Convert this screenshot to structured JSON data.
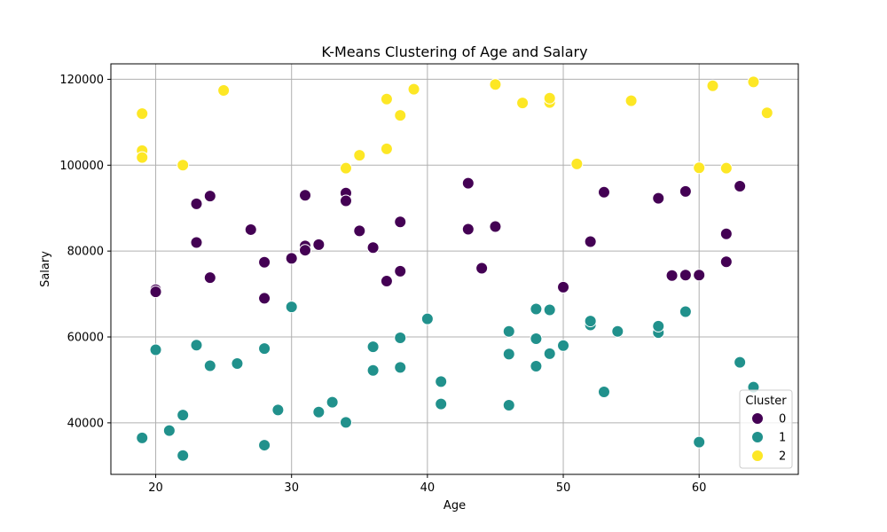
{
  "chart_data": {
    "type": "scatter",
    "title": "K-Means Clustering of Age and Salary",
    "xlabel": "Age",
    "ylabel": "Salary",
    "xlim": [
      16.7,
      67.3
    ],
    "ylim": [
      28000,
      123600
    ],
    "xticks": [
      20,
      30,
      40,
      50,
      60
    ],
    "yticks": [
      40000,
      60000,
      80000,
      100000,
      120000
    ],
    "grid": true,
    "legend": {
      "title": "Cluster",
      "placement": "bottom-right"
    },
    "series": [
      {
        "name": "0",
        "color": "#440154",
        "points": [
          [
            20,
            71000
          ],
          [
            20,
            70500
          ],
          [
            23,
            91000
          ],
          [
            23,
            82000
          ],
          [
            24,
            92800
          ],
          [
            24,
            73800
          ],
          [
            27,
            85000
          ],
          [
            28,
            77400
          ],
          [
            28,
            69000
          ],
          [
            30,
            78300
          ],
          [
            31,
            93000
          ],
          [
            31,
            81200
          ],
          [
            31,
            80200
          ],
          [
            32,
            81500
          ],
          [
            34,
            93500
          ],
          [
            34,
            91700
          ],
          [
            35,
            84700
          ],
          [
            36,
            80800
          ],
          [
            37,
            73000
          ],
          [
            38,
            86800
          ],
          [
            38,
            75300
          ],
          [
            43,
            95800
          ],
          [
            43,
            85100
          ],
          [
            44,
            76000
          ],
          [
            45,
            85700
          ],
          [
            50,
            71600
          ],
          [
            52,
            82200
          ],
          [
            53,
            93700
          ],
          [
            57,
            92300
          ],
          [
            58,
            74300
          ],
          [
            59,
            74400
          ],
          [
            59,
            93900
          ],
          [
            60,
            74400
          ],
          [
            62,
            84000
          ],
          [
            62,
            77500
          ],
          [
            63,
            95100
          ]
        ]
      },
      {
        "name": "1",
        "color": "#21918c",
        "points": [
          [
            19,
            36500
          ],
          [
            20,
            57000
          ],
          [
            21,
            38200
          ],
          [
            22,
            41800
          ],
          [
            22,
            32400
          ],
          [
            23,
            58100
          ],
          [
            24,
            53300
          ],
          [
            26,
            53800
          ],
          [
            28,
            57300
          ],
          [
            28,
            34800
          ],
          [
            29,
            43000
          ],
          [
            30,
            67000
          ],
          [
            32,
            42500
          ],
          [
            33,
            44800
          ],
          [
            34,
            40100
          ],
          [
            36,
            57700
          ],
          [
            36,
            52200
          ],
          [
            38,
            59800
          ],
          [
            38,
            52900
          ],
          [
            40,
            64200
          ],
          [
            41,
            49600
          ],
          [
            41,
            44400
          ],
          [
            46,
            61300
          ],
          [
            46,
            56000
          ],
          [
            46,
            44100
          ],
          [
            48,
            66500
          ],
          [
            48,
            59600
          ],
          [
            48,
            53200
          ],
          [
            49,
            66300
          ],
          [
            49,
            56100
          ],
          [
            50,
            58000
          ],
          [
            52,
            62800
          ],
          [
            52,
            63700
          ],
          [
            53,
            47200
          ],
          [
            54,
            61300
          ],
          [
            57,
            61000
          ],
          [
            57,
            62500
          ],
          [
            59,
            65900
          ],
          [
            60,
            35500
          ],
          [
            63,
            54100
          ],
          [
            64,
            48300
          ]
        ]
      },
      {
        "name": "2",
        "color": "#fde725",
        "points": [
          [
            19,
            112000
          ],
          [
            19,
            103400
          ],
          [
            19,
            101800
          ],
          [
            22,
            100000
          ],
          [
            25,
            117400
          ],
          [
            34,
            99300
          ],
          [
            35,
            102300
          ],
          [
            37,
            115400
          ],
          [
            37,
            103800
          ],
          [
            38,
            111600
          ],
          [
            39,
            117700
          ],
          [
            45,
            118800
          ],
          [
            47,
            114500
          ],
          [
            49,
            114600
          ],
          [
            49,
            115600
          ],
          [
            51,
            100300
          ],
          [
            55,
            115000
          ],
          [
            60,
            99400
          ],
          [
            61,
            118500
          ],
          [
            62,
            99300
          ],
          [
            64,
            119400
          ],
          [
            65,
            112200
          ]
        ]
      }
    ]
  }
}
